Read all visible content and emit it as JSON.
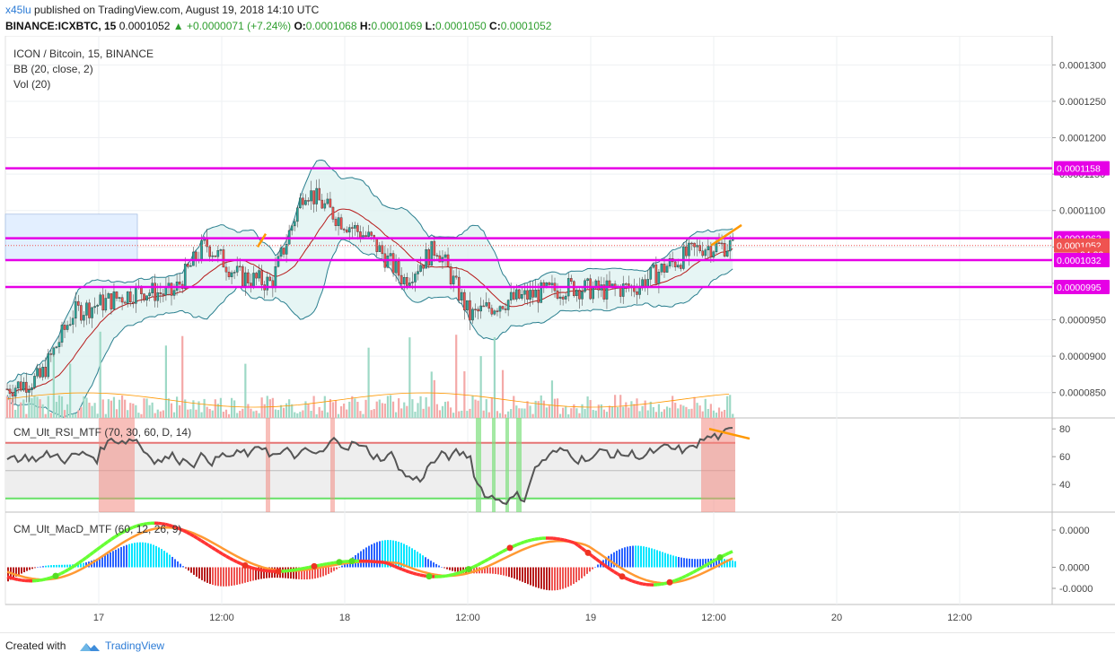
{
  "header": {
    "publisher": "x45lu",
    "published_text": "published on TradingView.com, August 19, 2018 14:10 UTC",
    "symbol": "BINANCE:ICXBTC, 15",
    "price": "0.0001052",
    "change": "+0.0000071 (+7.24%)",
    "o_label": "O:",
    "o_value": "0.0001068",
    "h_label": "H:",
    "h_value": "0.0001069",
    "l_label": "L:",
    "l_value": "0.0001050",
    "c_label": "C:",
    "c_value": "0.0001052"
  },
  "legend": {
    "title": "ICON / Bitcoin, 15, BINANCE",
    "bb": "BB (20, close, 2)",
    "vol": "Vol (20)",
    "rsi": "CM_Ult_RSI_MTF (70, 30, 60, D, 14)",
    "macd": "CM_Ult_MacD_MTF (60, 12, 26, 9)"
  },
  "price_axis_labels": [
    "0.0001300",
    "0.0001250",
    "0.0001200",
    "0.0001150",
    "0.0001100",
    "0.0001050",
    "0.0001000",
    "0.0000950",
    "0.0000900",
    "0.0000850"
  ],
  "price_tags": [
    {
      "text": "0.0001158",
      "value": 0.0001158,
      "color": "#e600e6"
    },
    {
      "text": "0.0001062",
      "value": 0.0001062,
      "color": "#e600e6"
    },
    {
      "text": "0.0001052",
      "value": 0.0001052,
      "color": "#ef5350"
    },
    {
      "text": "04:32",
      "value": 0.000104,
      "color": "#ef5350"
    },
    {
      "text": "0.0001032",
      "value": 0.0001032,
      "color": "#e600e6"
    },
    {
      "text": "0.0000995",
      "value": 9.95e-05,
      "color": "#e600e6"
    }
  ],
  "rsi_axis_labels": [
    "80",
    "60",
    "40"
  ],
  "macd_axis_labels": [
    "0.0000",
    "0.0000",
    "-0.0000"
  ],
  "time_axis_labels": [
    "17",
    "12:00",
    "18",
    "12:00",
    "19",
    "12:00",
    "20",
    "12:00"
  ],
  "footer": {
    "created": "Created with",
    "brand": "TradingView"
  },
  "colors": {
    "horizontal_lines": "#e600e6",
    "trendline": "#ff9800",
    "up": "#26a69a",
    "down": "#ef5350",
    "bb_fill": "#e0f2f1",
    "bb_band": "#2a7f8f",
    "basis": "#b71c1c",
    "rsi_line": "#555555",
    "macd_green": "#66ff33",
    "macd_red": "#ff3333",
    "signal": "#ff9933"
  },
  "chart_data": {
    "type": "candlestick",
    "title": "ICON / Bitcoin, 15, BINANCE",
    "ylim": [
      8.25e-05,
      0.000133
    ],
    "horizontal_levels": [
      0.0001158,
      0.0001062,
      0.0001032,
      9.95e-05
    ],
    "close_path": [
      {
        "t": "16 18:00",
        "close": 8.55e-05
      },
      {
        "t": "17 00:00",
        "close": 8.7e-05
      },
      {
        "t": "17 03:00",
        "close": 9.6e-05
      },
      {
        "t": "17 06:00",
        "close": 9.75e-05
      },
      {
        "t": "17 09:00",
        "close": 9.9e-05
      },
      {
        "t": "17 12:00",
        "close": 9.85e-05
      },
      {
        "t": "17 15:00",
        "close": 0.0001055
      },
      {
        "t": "17 18:00",
        "close": 0.000101
      },
      {
        "t": "17 21:00",
        "close": 0.0001
      },
      {
        "t": "18 00:00",
        "close": 0.000113
      },
      {
        "t": "18 03:00",
        "close": 0.000109
      },
      {
        "t": "18 06:00",
        "close": 0.000106
      },
      {
        "t": "18 09:00",
        "close": 0.0001005
      },
      {
        "t": "18 12:00",
        "close": 0.000105
      },
      {
        "t": "18 15:00",
        "close": 9.55e-05
      },
      {
        "t": "18 18:00",
        "close": 9.75e-05
      },
      {
        "t": "18 21:00",
        "close": 9.85e-05
      },
      {
        "t": "19 00:00",
        "close": 9.95e-05
      },
      {
        "t": "19 03:00",
        "close": 9.9e-05
      },
      {
        "t": "19 06:00",
        "close": 9.95e-05
      },
      {
        "t": "19 09:00",
        "close": 0.0001025
      },
      {
        "t": "19 12:00",
        "close": 0.000105
      },
      {
        "t": "19 14:10",
        "close": 0.0001052
      }
    ]
  }
}
